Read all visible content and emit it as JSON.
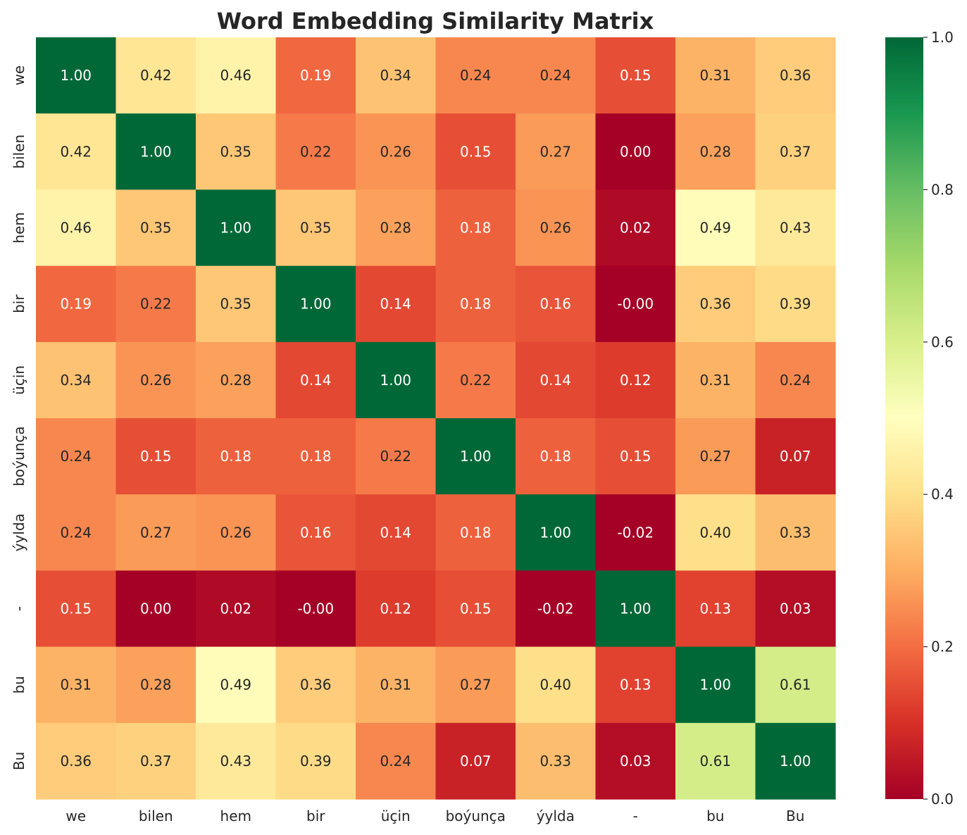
{
  "chart_data": {
    "type": "heatmap",
    "title": "Word Embedding Similarity Matrix",
    "xlabel": "",
    "ylabel": "",
    "x_labels": [
      "we",
      "bilen",
      "hem",
      "bir",
      "üçin",
      "boýunça",
      "ýylda",
      "-",
      "bu",
      "Bu"
    ],
    "y_labels": [
      "we",
      "bilen",
      "hem",
      "bir",
      "üçin",
      "boýunça",
      "ýylda",
      "-",
      "bu",
      "Bu"
    ],
    "values": [
      [
        1.0,
        0.42,
        0.46,
        0.19,
        0.34,
        0.24,
        0.24,
        0.15,
        0.31,
        0.36
      ],
      [
        0.42,
        1.0,
        0.35,
        0.22,
        0.26,
        0.15,
        0.27,
        0.0,
        0.28,
        0.37
      ],
      [
        0.46,
        0.35,
        1.0,
        0.35,
        0.28,
        0.18,
        0.26,
        0.02,
        0.49,
        0.43
      ],
      [
        0.19,
        0.22,
        0.35,
        1.0,
        0.14,
        0.18,
        0.16,
        -0.0,
        0.36,
        0.39
      ],
      [
        0.34,
        0.26,
        0.28,
        0.14,
        1.0,
        0.22,
        0.14,
        0.12,
        0.31,
        0.24
      ],
      [
        0.24,
        0.15,
        0.18,
        0.18,
        0.22,
        1.0,
        0.18,
        0.15,
        0.27,
        0.07
      ],
      [
        0.24,
        0.27,
        0.26,
        0.16,
        0.14,
        0.18,
        1.0,
        -0.02,
        0.4,
        0.33
      ],
      [
        0.15,
        0.0,
        0.02,
        -0.0,
        0.12,
        0.15,
        -0.02,
        1.0,
        0.13,
        0.03
      ],
      [
        0.31,
        0.28,
        0.49,
        0.36,
        0.31,
        0.27,
        0.4,
        0.13,
        1.0,
        0.61
      ],
      [
        0.36,
        0.37,
        0.43,
        0.39,
        0.24,
        0.07,
        0.33,
        0.03,
        0.61,
        1.0
      ]
    ],
    "cell_labels": [
      [
        "1.00",
        "0.42",
        "0.46",
        "0.19",
        "0.34",
        "0.24",
        "0.24",
        "0.15",
        "0.31",
        "0.36"
      ],
      [
        "0.42",
        "1.00",
        "0.35",
        "0.22",
        "0.26",
        "0.15",
        "0.27",
        "0.00",
        "0.28",
        "0.37"
      ],
      [
        "0.46",
        "0.35",
        "1.00",
        "0.35",
        "0.28",
        "0.18",
        "0.26",
        "0.02",
        "0.49",
        "0.43"
      ],
      [
        "0.19",
        "0.22",
        "0.35",
        "1.00",
        "0.14",
        "0.18",
        "0.16",
        "-0.00",
        "0.36",
        "0.39"
      ],
      [
        "0.34",
        "0.26",
        "0.28",
        "0.14",
        "1.00",
        "0.22",
        "0.14",
        "0.12",
        "0.31",
        "0.24"
      ],
      [
        "0.24",
        "0.15",
        "0.18",
        "0.18",
        "0.22",
        "1.00",
        "0.18",
        "0.15",
        "0.27",
        "0.07"
      ],
      [
        "0.24",
        "0.27",
        "0.26",
        "0.16",
        "0.14",
        "0.18",
        "1.00",
        "-0.02",
        "0.40",
        "0.33"
      ],
      [
        "0.15",
        "0.00",
        "0.02",
        "-0.00",
        "0.12",
        "0.15",
        "-0.02",
        "1.00",
        "0.13",
        "0.03"
      ],
      [
        "0.31",
        "0.28",
        "0.49",
        "0.36",
        "0.31",
        "0.27",
        "0.40",
        "0.13",
        "1.00",
        "0.61"
      ],
      [
        "0.36",
        "0.37",
        "0.43",
        "0.39",
        "0.24",
        "0.07",
        "0.33",
        "0.03",
        "0.61",
        "1.00"
      ]
    ],
    "colormap": "RdYlGn",
    "vmin": 0.0,
    "vmax": 1.0,
    "colorbar_ticks": [
      0.0,
      0.2,
      0.4,
      0.6,
      0.8,
      1.0
    ],
    "colorbar_tick_labels": [
      "0.0",
      "0.2",
      "0.4",
      "0.6",
      "0.8",
      "1.0"
    ],
    "colorbar_placement": "right",
    "grid": false
  }
}
